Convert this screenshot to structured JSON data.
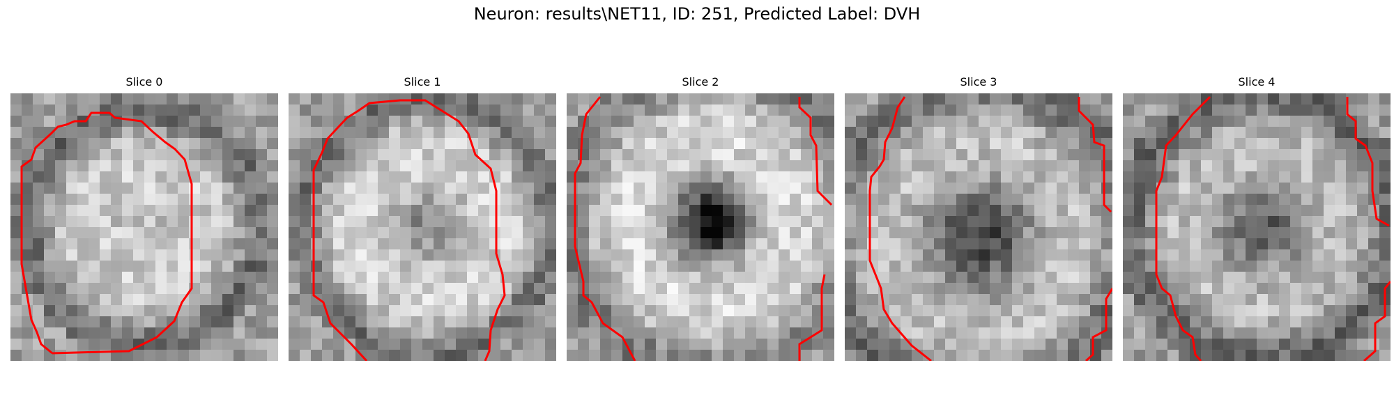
{
  "figure": {
    "title": "Neuron: results\\NET11, ID: 251, Predicted Label: DVH"
  },
  "panels": [
    {
      "title": "Slice 0",
      "image": "grayscale-microscopy-cell-slice",
      "contour_color": "#ff0000"
    },
    {
      "title": "Slice 1",
      "image": "grayscale-microscopy-cell-slice",
      "contour_color": "#ff0000"
    },
    {
      "title": "Slice 2",
      "image": "grayscale-microscopy-cell-slice",
      "contour_color": "#ff0000"
    },
    {
      "title": "Slice 3",
      "image": "grayscale-microscopy-cell-slice",
      "contour_color": "#ff0000"
    },
    {
      "title": "Slice 4",
      "image": "grayscale-microscopy-cell-slice",
      "contour_color": "#ff0000"
    }
  ]
}
